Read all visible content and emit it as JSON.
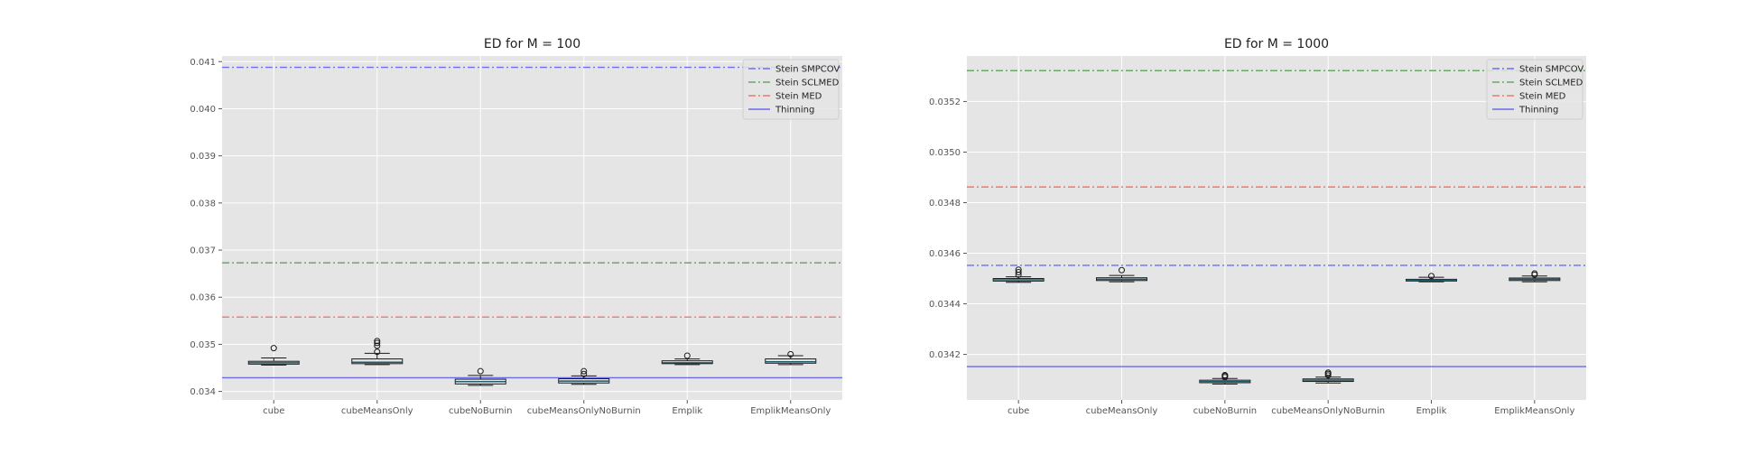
{
  "chart_data": [
    {
      "type": "box",
      "title": "ED for M = 100",
      "xlabel": "",
      "ylabel": "",
      "categories": [
        "cube",
        "cubeMeansOnly",
        "cubeNoBurnin",
        "cubeMeansOnlyNoBurnin",
        "Emplik",
        "EmplikMeansOnly"
      ],
      "ylim": [
        0.03382,
        0.04112
      ],
      "yticks": [
        0.034,
        0.035,
        0.036,
        0.037,
        0.038,
        0.039,
        0.04,
        0.041
      ],
      "ytick_labels": [
        "0.034",
        "0.035",
        "0.036",
        "0.037",
        "0.038",
        "0.039",
        "0.040",
        "0.041"
      ],
      "boxes": [
        {
          "whislo": 0.03456,
          "q1": 0.03458,
          "med": 0.03461,
          "q3": 0.03464,
          "whishi": 0.03471,
          "fliers": [
            0.03492
          ]
        },
        {
          "whislo": 0.03457,
          "q1": 0.03459,
          "med": 0.03462,
          "q3": 0.03469,
          "whishi": 0.03481,
          "fliers": [
            0.03484,
            0.03497,
            0.03503,
            0.03507
          ]
        },
        {
          "whislo": 0.03413,
          "q1": 0.03416,
          "med": 0.03421,
          "q3": 0.03426,
          "whishi": 0.03434,
          "fliers": [
            0.03443
          ]
        },
        {
          "whislo": 0.03415,
          "q1": 0.03418,
          "med": 0.03422,
          "q3": 0.03427,
          "whishi": 0.03433,
          "fliers": [
            0.03437,
            0.03443
          ]
        },
        {
          "whislo": 0.03457,
          "q1": 0.03459,
          "med": 0.03461,
          "q3": 0.03465,
          "whishi": 0.03469,
          "fliers": [
            0.03476
          ]
        },
        {
          "whislo": 0.03457,
          "q1": 0.0346,
          "med": 0.03463,
          "q3": 0.03469,
          "whishi": 0.03476,
          "fliers": [
            0.03479
          ]
        }
      ],
      "hlines": [
        {
          "name": "Stein SMPCOV",
          "value": 0.04088,
          "color": "#6f6ff2",
          "style": "dashdot"
        },
        {
          "name": "Stein SCLMED",
          "value": 0.03673,
          "color": "#6aa86a",
          "style": "dashdot"
        },
        {
          "name": "Stein MED",
          "value": 0.03558,
          "color": "#ec7a6e",
          "style": "dashdot"
        },
        {
          "name": "Thinning",
          "value": 0.03429,
          "color": "#6b6bea",
          "style": "solid"
        }
      ],
      "legend": "top-right",
      "grid": true
    },
    {
      "type": "box",
      "title": "ED for M = 1000",
      "xlabel": "",
      "ylabel": "",
      "categories": [
        "cube",
        "cubeMeansOnly",
        "cubeNoBurnin",
        "cubeMeansOnlyNoBurnin",
        "Emplik",
        "EmplikMeansOnly"
      ],
      "ylim": [
        0.03402,
        0.03538
      ],
      "yticks": [
        0.0342,
        0.0344,
        0.0346,
        0.0348,
        0.035,
        0.0352
      ],
      "ytick_labels": [
        "0.0342",
        "0.0344",
        "0.0346",
        "0.0348",
        "0.0350",
        "0.0352"
      ],
      "boxes": [
        {
          "whislo": 0.034485,
          "q1": 0.03449,
          "med": 0.034495,
          "q3": 0.0345,
          "whishi": 0.034507,
          "fliers": [
            0.034515,
            0.034525,
            0.034535
          ]
        },
        {
          "whislo": 0.034487,
          "q1": 0.034492,
          "med": 0.034497,
          "q3": 0.034503,
          "whishi": 0.034512,
          "fliers": [
            0.034533
          ]
        },
        {
          "whislo": 0.034083,
          "q1": 0.034088,
          "med": 0.034093,
          "q3": 0.034098,
          "whishi": 0.034105,
          "fliers": [
            0.03411,
            0.034115,
            0.034118
          ]
        },
        {
          "whislo": 0.034087,
          "q1": 0.034093,
          "med": 0.034098,
          "q3": 0.034103,
          "whishi": 0.03411,
          "fliers": [
            0.034117,
            0.034123,
            0.034128
          ]
        },
        {
          "whislo": 0.034487,
          "q1": 0.03449,
          "med": 0.034493,
          "q3": 0.034497,
          "whishi": 0.034505,
          "fliers": [
            0.03451
          ]
        },
        {
          "whislo": 0.034487,
          "q1": 0.034492,
          "med": 0.034497,
          "q3": 0.034502,
          "whishi": 0.03451,
          "fliers": [
            0.034515,
            0.03452
          ]
        }
      ],
      "hlines": [
        {
          "name": "Stein SMPCOV",
          "value": 0.034552,
          "color": "#6f6ff2",
          "style": "dashdot"
        },
        {
          "name": "Stein SCLMED",
          "value": 0.035322,
          "color": "#6aa86a",
          "style": "dashdot"
        },
        {
          "name": "Stein MED",
          "value": 0.034862,
          "color": "#ec7a6e",
          "style": "dashdot"
        },
        {
          "name": "Thinning",
          "value": 0.034152,
          "color": "#6b6bea",
          "style": "solid"
        }
      ],
      "legend": "top-right",
      "grid": true
    }
  ],
  "colors": {
    "axes_bg": "#e5e5e5",
    "grid": "#ffffff",
    "box_edge": "#1a1a1a",
    "median": "#1f5b6b"
  }
}
